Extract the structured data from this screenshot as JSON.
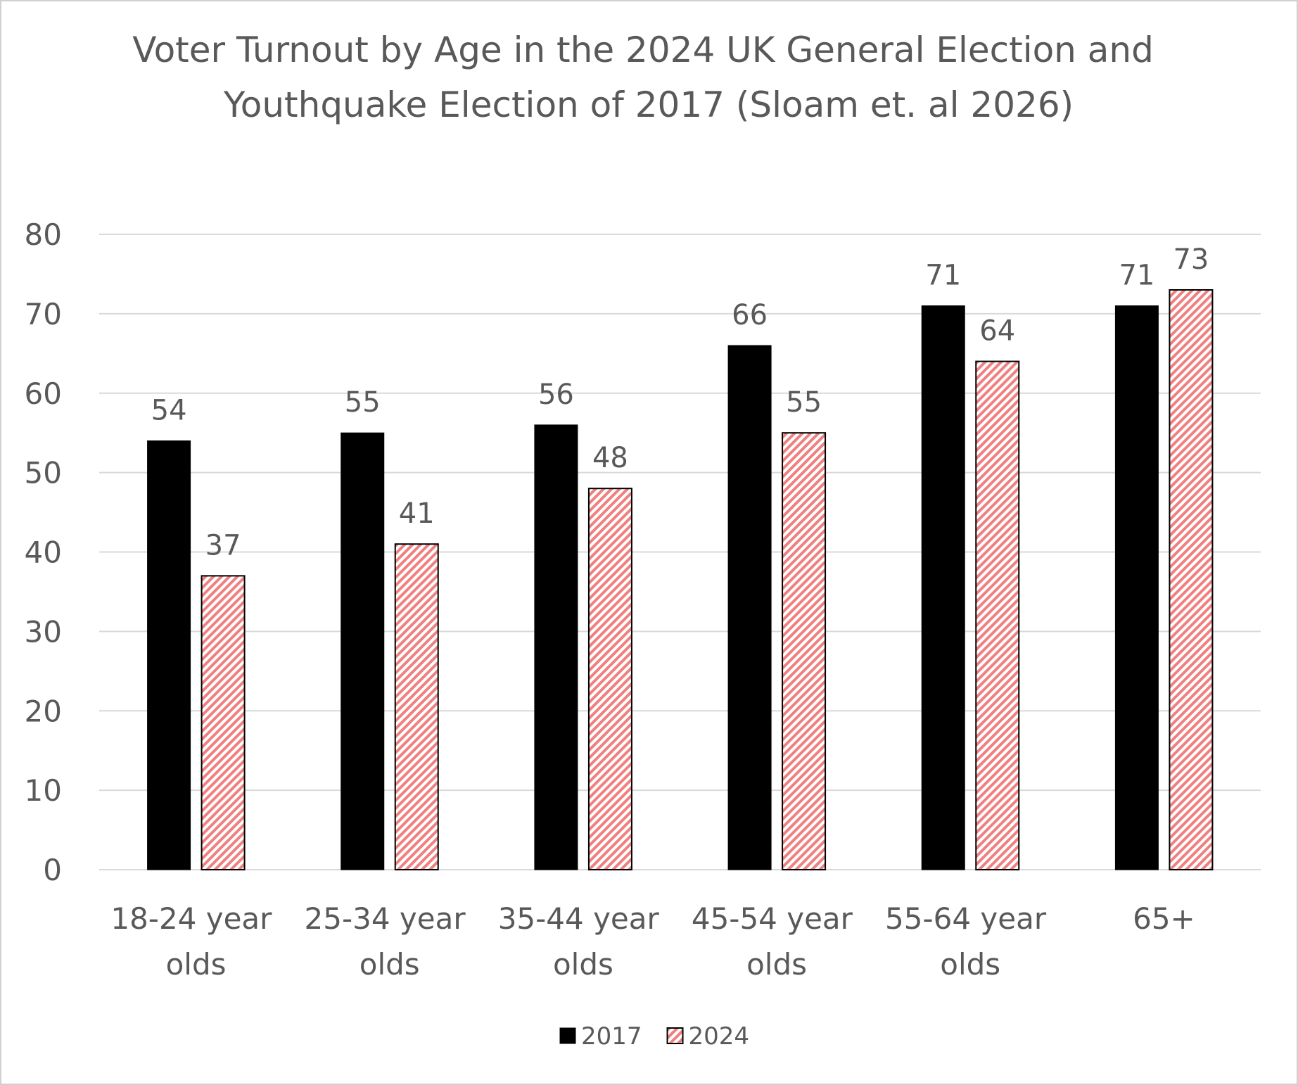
{
  "chart_data": {
    "type": "bar",
    "title": "Voter Turnout by Age in the 2024 UK General Election and Youthquake Election of 2017 (Sloam et. al 2026)",
    "categories": [
      "18-24 year olds",
      "25-34 year olds",
      "35-44 year olds",
      "45-54 year olds",
      "55-64 year olds",
      "65+"
    ],
    "series": [
      {
        "name": "2017",
        "color": "#000000",
        "values": [
          54,
          55,
          56,
          66,
          71,
          71
        ]
      },
      {
        "name": "2024",
        "color": "#f08080",
        "values": [
          37,
          41,
          48,
          55,
          64,
          73
        ]
      }
    ],
    "ylim": [
      0,
      80
    ],
    "yticks": [
      0,
      10,
      20,
      30,
      40,
      50,
      60,
      70,
      80
    ],
    "grid": true,
    "legend": "bottom"
  }
}
